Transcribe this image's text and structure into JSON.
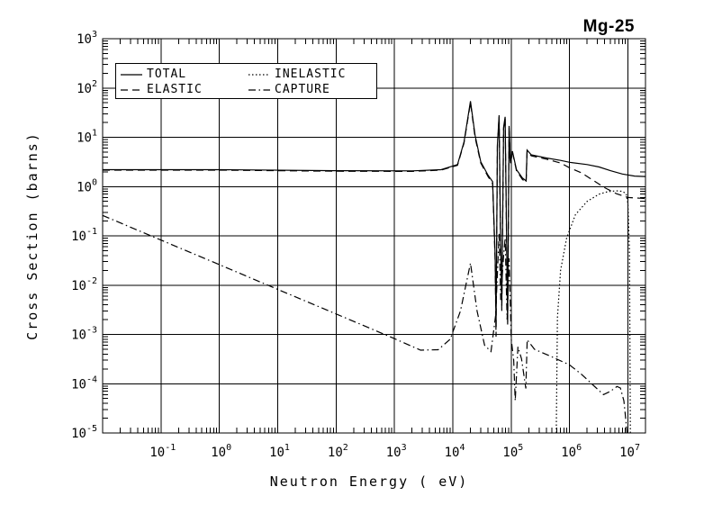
{
  "title": "Mg-25",
  "axes": {
    "xlabel": "Neutron Energy ( eV)",
    "ylabel": "Cross Section (barns)",
    "x_tick_exponents": [
      -1,
      0,
      1,
      2,
      3,
      4,
      5,
      6,
      7
    ],
    "y_tick_exponents": [
      3,
      2,
      1,
      0,
      -1,
      -2,
      -3,
      -4,
      -5
    ]
  },
  "legend": {
    "items": [
      {
        "label": "TOTAL",
        "dash": ""
      },
      {
        "label": "ELASTIC",
        "dash": "8,5"
      },
      {
        "label": "INELASTIC",
        "dash": "1.5,2.5"
      },
      {
        "label": "CAPTURE",
        "dash": "8,3.5,1.5,3.5"
      }
    ]
  },
  "colors": {
    "foreground": "#000000",
    "background": "#ffffff"
  },
  "chart_data": {
    "type": "line",
    "title": "Mg-25",
    "xlabel": "Neutron Energy ( eV)",
    "ylabel": "Cross Section (barns)",
    "x_scale": "log",
    "y_scale": "log",
    "xlim": [
      0.01,
      20000000
    ],
    "ylim": [
      1e-05,
      1000
    ],
    "grid": true,
    "legend_position": "top-left",
    "series": [
      {
        "name": "TOTAL",
        "linestyle": "solid",
        "dash": "",
        "points": [
          [
            0.01,
            2.2
          ],
          [
            1,
            2.2
          ],
          [
            100,
            2.1
          ],
          [
            2000,
            2.08
          ],
          [
            6300,
            2.2
          ],
          [
            12000,
            2.8
          ],
          [
            15500,
            8
          ],
          [
            20000,
            54
          ],
          [
            24000,
            11
          ],
          [
            30000,
            3.2
          ],
          [
            40000,
            1.7
          ],
          [
            48000,
            1.26
          ],
          [
            53000,
            0.04
          ],
          [
            55000,
            0.0014
          ],
          [
            58000,
            7
          ],
          [
            62000,
            28
          ],
          [
            65000,
            0.25
          ],
          [
            69000,
            0.004
          ],
          [
            74000,
            16
          ],
          [
            78500,
            26
          ],
          [
            83000,
            0.15
          ],
          [
            87000,
            0.002
          ],
          [
            92000,
            17
          ],
          [
            97000,
            3.0
          ],
          [
            105000,
            5.2
          ],
          [
            123000,
            2.2
          ],
          [
            155000,
            1.5
          ],
          [
            180000,
            1.3
          ],
          [
            187000,
            5.5
          ],
          [
            220000,
            4.4
          ],
          [
            400000,
            3.8
          ],
          [
            700000,
            3.4
          ],
          [
            1000000,
            3.1
          ],
          [
            2000000,
            2.8
          ],
          [
            3200000,
            2.5
          ],
          [
            5000000,
            2.1
          ],
          [
            8000000,
            1.8
          ],
          [
            13000000,
            1.63
          ],
          [
            20000000,
            1.6
          ]
        ]
      },
      {
        "name": "ELASTIC",
        "linestyle": "dashed",
        "dash": "8,5",
        "points": [
          [
            0.01,
            2.15
          ],
          [
            1,
            2.15
          ],
          [
            100,
            2.05
          ],
          [
            2000,
            2.03
          ],
          [
            6300,
            2.15
          ],
          [
            12000,
            2.7
          ],
          [
            15500,
            7.6
          ],
          [
            20000,
            50
          ],
          [
            24000,
            10
          ],
          [
            30000,
            3.0
          ],
          [
            40000,
            1.6
          ],
          [
            48000,
            1.15
          ],
          [
            53000,
            0.03
          ],
          [
            55000,
            0.0009
          ],
          [
            58000,
            6.5
          ],
          [
            62000,
            26
          ],
          [
            65000,
            0.2
          ],
          [
            69000,
            0.003
          ],
          [
            74000,
            15
          ],
          [
            78500,
            24
          ],
          [
            83000,
            0.12
          ],
          [
            87000,
            0.0015
          ],
          [
            92000,
            16
          ],
          [
            97000,
            2.8
          ],
          [
            105000,
            5.0
          ],
          [
            123000,
            2.1
          ],
          [
            155000,
            1.4
          ],
          [
            180000,
            1.2
          ],
          [
            187000,
            5.2
          ],
          [
            220000,
            4.2
          ],
          [
            400000,
            3.6
          ],
          [
            700000,
            3.0
          ],
          [
            1000000,
            2.4
          ],
          [
            1600000,
            1.9
          ],
          [
            2500000,
            1.35
          ],
          [
            4000000,
            0.95
          ],
          [
            6300000,
            0.72
          ],
          [
            10000000,
            0.6
          ],
          [
            16000000,
            0.58
          ],
          [
            20000000,
            0.57
          ]
        ]
      },
      {
        "name": "INELASTIC",
        "linestyle": "dotted",
        "dash": "1.5,2.5",
        "points": [
          [
            590000,
            1e-05
          ],
          [
            620000,
            0.0022
          ],
          [
            700000,
            0.02
          ],
          [
            890000,
            0.09
          ],
          [
            1260000,
            0.27
          ],
          [
            2000000,
            0.5
          ],
          [
            3200000,
            0.7
          ],
          [
            4500000,
            0.79
          ],
          [
            6300000,
            0.82
          ],
          [
            8000000,
            0.8
          ],
          [
            9300000,
            0.72
          ],
          [
            10000000,
            0.45
          ],
          [
            10600000,
            0.05
          ],
          [
            11000000,
            1e-05
          ]
        ]
      },
      {
        "name": "CAPTURE",
        "linestyle": "dash-dot",
        "dash": "8,3.5,1.5,3.5",
        "points": [
          [
            0.01,
            0.26
          ],
          [
            0.1,
            0.082
          ],
          [
            1,
            0.026
          ],
          [
            10,
            0.0082
          ],
          [
            100,
            0.0026
          ],
          [
            1000,
            0.00082
          ],
          [
            2800,
            0.00048
          ],
          [
            5600,
            0.00049
          ],
          [
            9000,
            0.0008
          ],
          [
            13500,
            0.003
          ],
          [
            20000,
            0.028
          ],
          [
            26000,
            0.003
          ],
          [
            35000,
            0.0006
          ],
          [
            45000,
            0.00045
          ],
          [
            54000,
            0.0024
          ],
          [
            62000,
            0.11
          ],
          [
            66000,
            0.005
          ],
          [
            74000,
            0.04
          ],
          [
            78500,
            0.09
          ],
          [
            85000,
            0.002
          ],
          [
            92000,
            0.035
          ],
          [
            100000,
            0.0008
          ],
          [
            110000,
            0.0003
          ],
          [
            117000,
            4.5e-05
          ],
          [
            130000,
            0.00056
          ],
          [
            150000,
            0.00032
          ],
          [
            178000,
            8e-05
          ],
          [
            188000,
            0.00078
          ],
          [
            250000,
            0.0005
          ],
          [
            500000,
            0.00035
          ],
          [
            1000000,
            0.00024
          ],
          [
            1600000,
            0.000155
          ],
          [
            2500000,
            9.5e-05
          ],
          [
            3800000,
            6e-05
          ],
          [
            5000000,
            7e-05
          ],
          [
            6500000,
            8.8e-05
          ],
          [
            7400000,
            8.2e-05
          ],
          [
            8500000,
            4.5e-05
          ],
          [
            9200000,
            1.8e-05
          ],
          [
            9600000,
            1e-05
          ]
        ]
      }
    ]
  }
}
